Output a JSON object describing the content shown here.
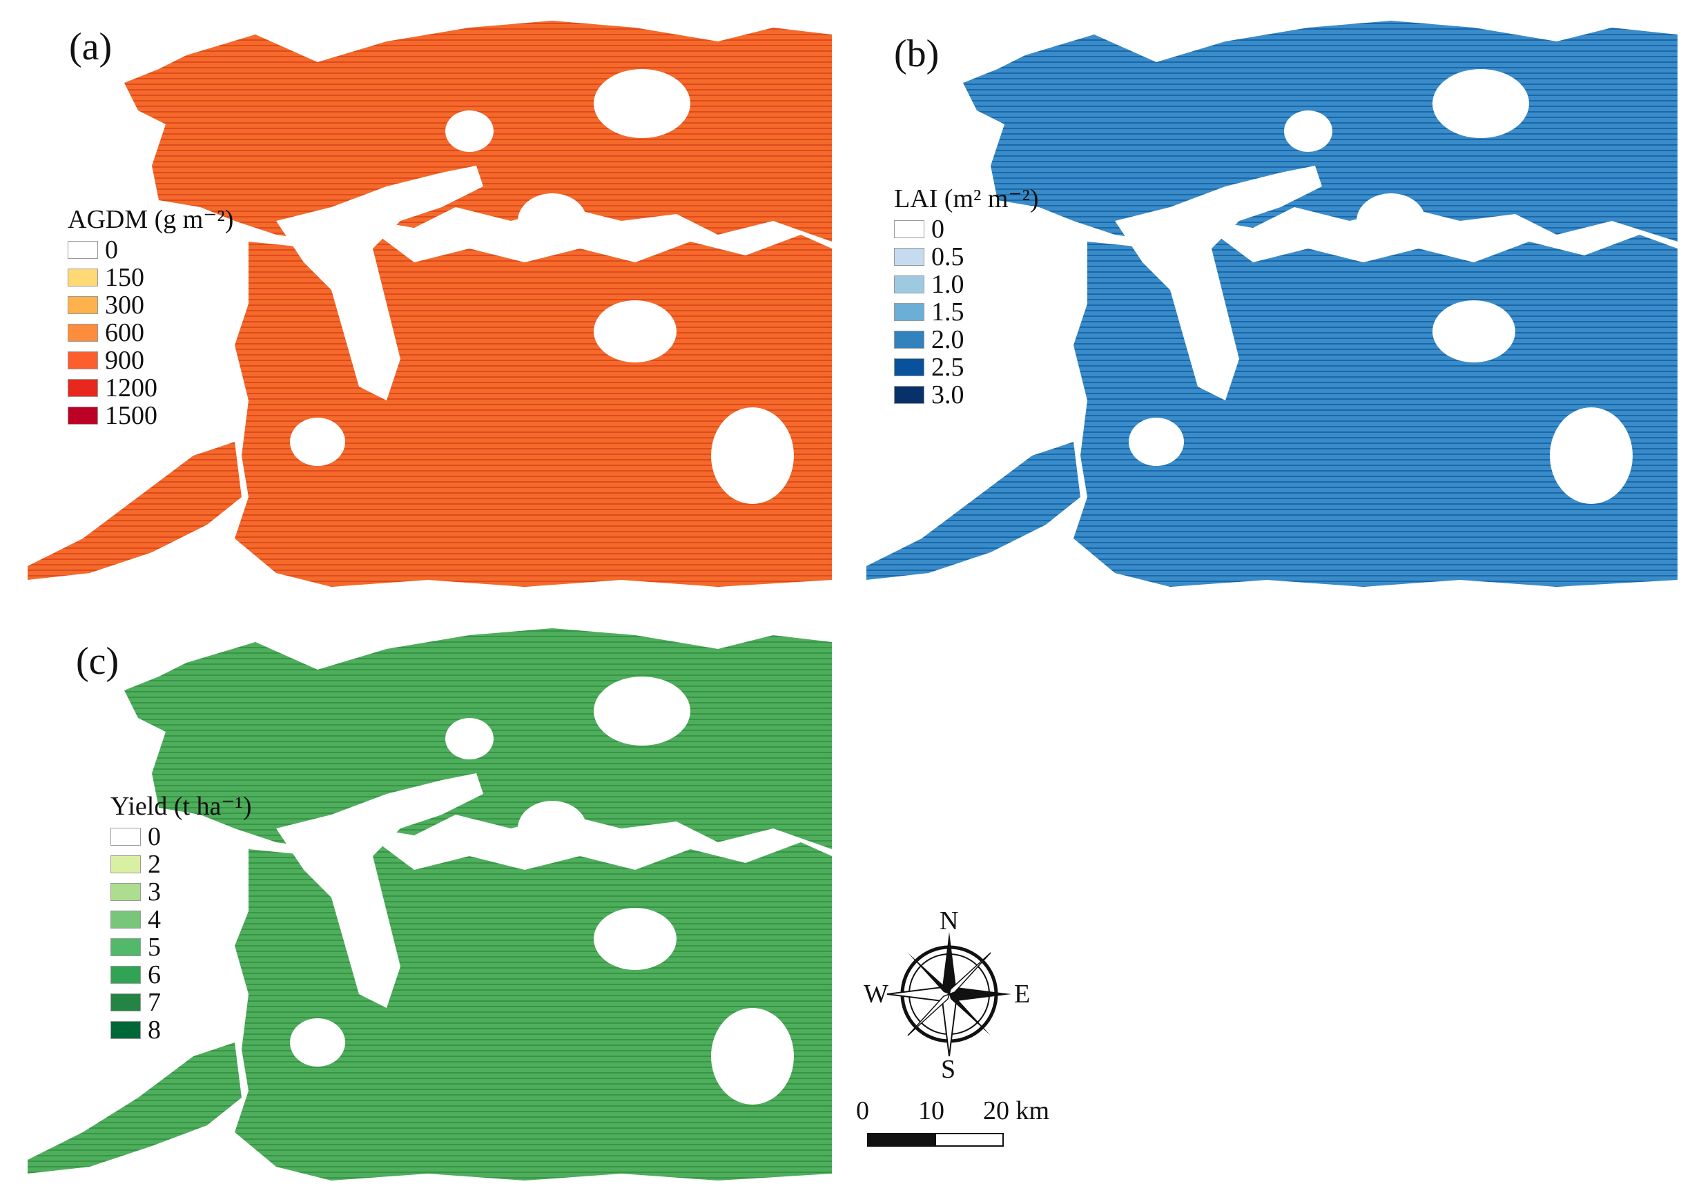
{
  "panels": [
    {
      "id": "a",
      "label": "(a)",
      "legend_title": "AGDM (g m⁻²)",
      "legend_items": [
        {
          "label": "0",
          "color": "#ffffff"
        },
        {
          "label": "150",
          "color": "#fed976"
        },
        {
          "label": "300",
          "color": "#feb24c"
        },
        {
          "label": "600",
          "color": "#fd8d3c"
        },
        {
          "label": "900",
          "color": "#fc5e2e"
        },
        {
          "label": "1200",
          "color": "#e8281c"
        },
        {
          "label": "1500",
          "color": "#bd0026"
        }
      ],
      "map_color": "#f46a2a",
      "map_dark": "#d83a18",
      "map_light": "#fb9a4a"
    },
    {
      "id": "b",
      "label": "(b)",
      "legend_title": "LAI (m² m⁻²)",
      "legend_items": [
        {
          "label": "0",
          "color": "#ffffff"
        },
        {
          "label": "0.5",
          "color": "#c6dbef"
        },
        {
          "label": "1.0",
          "color": "#9ecae1"
        },
        {
          "label": "1.5",
          "color": "#6baed6"
        },
        {
          "label": "2.0",
          "color": "#3182bd"
        },
        {
          "label": "2.5",
          "color": "#08519c"
        },
        {
          "label": "3.0",
          "color": "#08306b"
        }
      ],
      "map_color": "#3a8cc8",
      "map_dark": "#0b57a0",
      "map_light": "#8cc0e2"
    },
    {
      "id": "c",
      "label": "(c)",
      "legend_title": "Yield (t ha⁻¹)",
      "legend_items": [
        {
          "label": "0",
          "color": "#ffffff"
        },
        {
          "label": "2",
          "color": "#d9f0a3"
        },
        {
          "label": "3",
          "color": "#addd8e"
        },
        {
          "label": "4",
          "color": "#78c679"
        },
        {
          "label": "5",
          "color": "#52b86a"
        },
        {
          "label": "6",
          "color": "#31a354"
        },
        {
          "label": "7",
          "color": "#238443"
        },
        {
          "label": "8",
          "color": "#006837"
        }
      ],
      "map_color": "#4fae5c",
      "map_dark": "#2b8a3e",
      "map_light": "#92d08a"
    }
  ],
  "compass": {
    "n": "N",
    "s": "S",
    "e": "E",
    "w": "W"
  },
  "scalebar": {
    "ticks": [
      "0",
      "10",
      "20 km"
    ]
  }
}
